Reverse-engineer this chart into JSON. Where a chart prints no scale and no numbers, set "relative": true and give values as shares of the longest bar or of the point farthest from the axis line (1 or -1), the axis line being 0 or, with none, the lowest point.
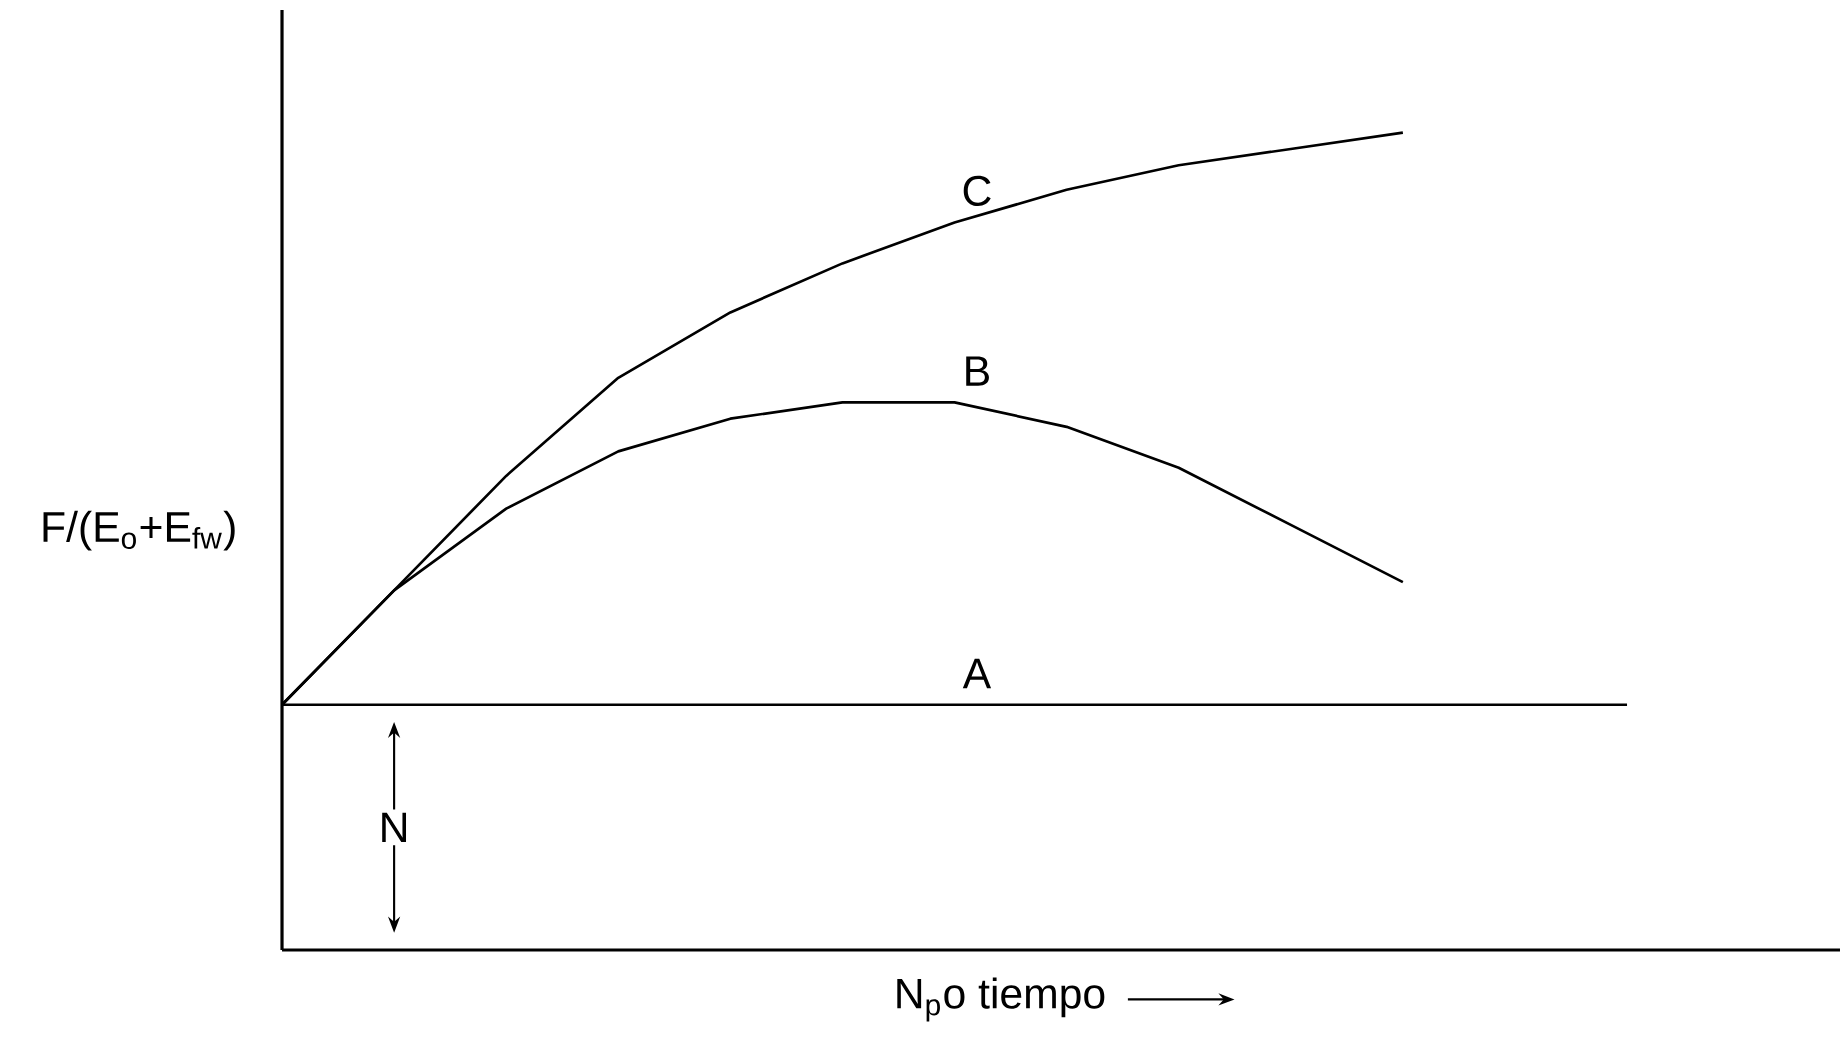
{
  "chart_data": {
    "type": "line",
    "relative": true,
    "xlabel": "N$_{p}$o tiempo",
    "ylabel": "F/(E$_{o}$+E$_{fw}$)",
    "categories": [
      null,
      null,
      null,
      null,
      null,
      null,
      null,
      null,
      null,
      null,
      null,
      null,
      null
    ],
    "series": [
      {
        "name": "A",
        "color": "#000000",
        "values": [
          0.3,
          0.3,
          0.3,
          0.3,
          0.3,
          0.3,
          0.3,
          0.3,
          0.3,
          0.3,
          0.3,
          0.3,
          0.3
        ]
      },
      {
        "name": "B",
        "color": "#000000",
        "values": [
          0.3,
          0.44,
          0.54,
          0.61,
          0.65,
          0.67,
          0.67,
          0.64,
          0.59,
          0.52,
          0.45,
          null,
          null
        ]
      },
      {
        "name": "C",
        "color": "#000000",
        "values": [
          0.3,
          0.44,
          0.58,
          0.7,
          0.78,
          0.84,
          0.89,
          0.93,
          0.96,
          0.98,
          1.0,
          null,
          null
        ]
      }
    ],
    "annotations": [
      "N"
    ]
  }
}
